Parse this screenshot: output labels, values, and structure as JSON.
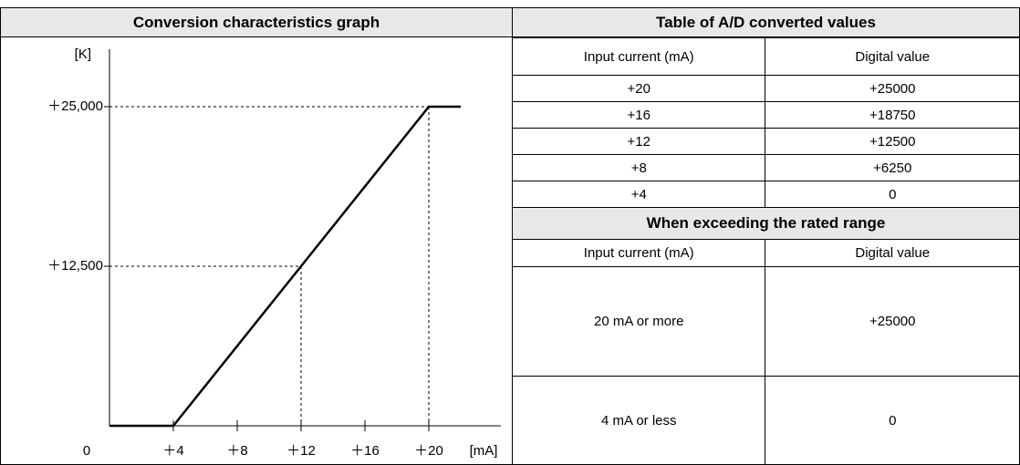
{
  "graph": {
    "title": "Conversion characteristics graph",
    "y_unit": "[K]",
    "x_unit": "[mA]",
    "origin_label": "0",
    "xlim": [
      0,
      24.5
    ],
    "ylim": [
      0,
      29500
    ],
    "xticks": [
      {
        "value": 4,
        "label": "＋4"
      },
      {
        "value": 8,
        "label": "＋8"
      },
      {
        "value": 12,
        "label": "＋12"
      },
      {
        "value": 16,
        "label": "＋16"
      },
      {
        "value": 20,
        "label": "＋20"
      }
    ],
    "yticks": [
      {
        "value": 12500,
        "label": "＋12,500"
      },
      {
        "value": 25000,
        "label": "＋25,000"
      }
    ],
    "line": {
      "x": [
        0,
        4,
        20,
        22
      ],
      "y": [
        0,
        0,
        25000,
        25000
      ]
    }
  },
  "table": {
    "title": "Table of A/D converted values",
    "header": [
      "Input current (mA)",
      "Digital value"
    ],
    "rows": [
      [
        "+20",
        "+25000"
      ],
      [
        "+16",
        "+18750"
      ],
      [
        "+12",
        "+12500"
      ],
      [
        "+8",
        "+6250"
      ],
      [
        "+4",
        "0"
      ]
    ],
    "exceed_title": "When exceeding the rated range",
    "exceed_header": [
      "Input current (mA)",
      "Digital value"
    ],
    "exceed_rows": [
      [
        "20 mA or more",
        "+25000"
      ],
      [
        "4 mA or less",
        "0"
      ]
    ]
  }
}
